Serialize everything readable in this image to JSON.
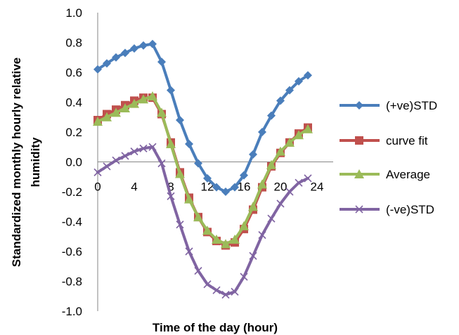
{
  "chart_data": {
    "type": "line",
    "title": "",
    "xlabel": "Time of the day (hour)",
    "ylabel": "Standardized monthly hourly relative humidity",
    "xlim": [
      0,
      24
    ],
    "ylim": [
      -1.0,
      1.0
    ],
    "xticks": [
      0,
      4,
      8,
      12,
      16,
      20,
      24
    ],
    "yticks": [
      "1.0",
      "0.8",
      "0.6",
      "0.4",
      "0.2",
      "0.0",
      "-0.2",
      "-0.4",
      "-0.6",
      "-0.8",
      "-1.0"
    ],
    "grid": false,
    "legend_position": "right",
    "x": [
      0,
      1,
      2,
      3,
      4,
      5,
      6,
      7,
      8,
      9,
      10,
      11,
      12,
      13,
      14,
      15,
      16,
      17,
      18,
      19,
      20,
      21,
      22,
      23
    ],
    "series": [
      {
        "name": "(+ve)STD",
        "color": "#4a7ebb",
        "marker": "diamond",
        "values": [
          0.62,
          0.66,
          0.7,
          0.73,
          0.76,
          0.78,
          0.79,
          0.67,
          0.48,
          0.28,
          0.12,
          -0.01,
          -0.11,
          -0.17,
          -0.2,
          -0.17,
          -0.09,
          0.05,
          0.2,
          0.31,
          0.41,
          0.48,
          0.54,
          0.58
        ]
      },
      {
        "name": "curve fit",
        "color": "#c0504d",
        "marker": "square",
        "values": [
          0.28,
          0.32,
          0.35,
          0.38,
          0.41,
          0.43,
          0.43,
          0.32,
          0.13,
          -0.07,
          -0.24,
          -0.37,
          -0.47,
          -0.53,
          -0.56,
          -0.54,
          -0.45,
          -0.32,
          -0.17,
          -0.03,
          0.06,
          0.13,
          0.19,
          0.23
        ]
      },
      {
        "name": "Average",
        "color": "#9bbb59",
        "marker": "triangle",
        "values": [
          0.27,
          0.3,
          0.33,
          0.36,
          0.39,
          0.42,
          0.44,
          0.33,
          0.12,
          -0.08,
          -0.25,
          -0.37,
          -0.46,
          -0.52,
          -0.55,
          -0.52,
          -0.43,
          -0.3,
          -0.15,
          -0.02,
          0.07,
          0.13,
          0.18,
          0.22
        ]
      },
      {
        "name": "(-ve)STD",
        "color": "#8064a2",
        "marker": "x",
        "values": [
          -0.07,
          -0.03,
          0.01,
          0.04,
          0.07,
          0.09,
          0.1,
          -0.01,
          -0.23,
          -0.42,
          -0.6,
          -0.73,
          -0.82,
          -0.86,
          -0.89,
          -0.87,
          -0.77,
          -0.63,
          -0.49,
          -0.38,
          -0.28,
          -0.2,
          -0.14,
          -0.11
        ]
      }
    ]
  }
}
